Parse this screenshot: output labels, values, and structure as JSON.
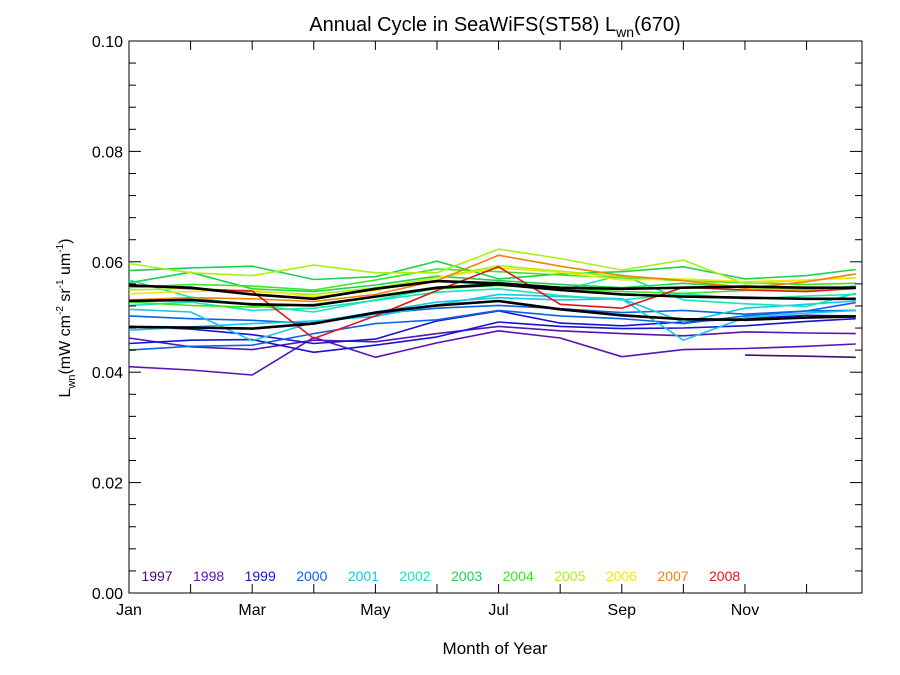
{
  "chart_data": {
    "type": "line",
    "title": {
      "main": "Annual Cycle in SeaWiFS(ST58) L",
      "sub": "wn",
      "tail": "(670)"
    },
    "xlabel": "Month of Year",
    "ylabel": {
      "pre": "L",
      "sub": "wn",
      "units": "(mW cm",
      "sup1": "-2",
      "mid1": " sr",
      "sup2": "-1",
      "mid2": " um",
      "sup3": "-1",
      "close": ")"
    },
    "xlim": [
      1,
      12.9
    ],
    "ylim": [
      0.0,
      0.1
    ],
    "xticks": [
      {
        "value": 1,
        "label": "Jan"
      },
      {
        "value": 3,
        "label": "Mar"
      },
      {
        "value": 5,
        "label": "May"
      },
      {
        "value": 7,
        "label": "Jul"
      },
      {
        "value": 9,
        "label": "Sep"
      },
      {
        "value": 11,
        "label": "Nov"
      }
    ],
    "yticks": [
      {
        "value": 0.0,
        "label": "0.00"
      },
      {
        "value": 0.02,
        "label": "0.02"
      },
      {
        "value": 0.04,
        "label": "0.04"
      },
      {
        "value": 0.06,
        "label": "0.06"
      },
      {
        "value": 0.08,
        "label": "0.08"
      },
      {
        "value": 0.1,
        "label": "0.10"
      }
    ],
    "legend_placement": "bottom-left",
    "series": [
      {
        "name": "1997",
        "color": "#4a0a6e",
        "lines": [
          {
            "x": [
              11.0,
              12.0,
              12.8
            ],
            "y": [
              0.0431,
              0.0429,
              0.0427
            ]
          }
        ]
      },
      {
        "name": "1998",
        "color": "#5a14b4",
        "lines": [
          {
            "x": [
              1,
              2,
              3,
              4,
              5,
              6,
              7,
              8,
              9,
              10,
              11,
              12,
              12.8
            ],
            "y": [
              0.041,
              0.0404,
              0.0395,
              0.0463,
              0.0427,
              0.0453,
              0.0475,
              0.0462,
              0.0428,
              0.0441,
              0.0443,
              0.0447,
              0.0451
            ]
          },
          {
            "x": [
              1,
              2,
              3,
              4,
              5,
              6,
              7,
              8,
              9,
              10,
              11,
              12,
              12.8
            ],
            "y": [
              0.0462,
              0.0446,
              0.0441,
              0.0458,
              0.0455,
              0.047,
              0.0483,
              0.0475,
              0.047,
              0.0466,
              0.0473,
              0.0471,
              0.047
            ]
          }
        ]
      },
      {
        "name": "1999",
        "color": "#1414d2",
        "lines": [
          {
            "x": [
              1,
              2,
              3,
              4,
              5,
              6,
              7,
              8,
              9,
              10,
              11,
              12,
              12.8
            ],
            "y": [
              0.0452,
              0.0458,
              0.0459,
              0.0436,
              0.0449,
              0.0464,
              0.0491,
              0.0483,
              0.0479,
              0.048,
              0.0484,
              0.0492,
              0.0497
            ]
          },
          {
            "x": [
              1,
              2,
              3,
              4,
              5,
              6,
              7,
              8,
              9,
              10,
              11,
              12,
              12.8
            ],
            "y": [
              0.0483,
              0.0478,
              0.0468,
              0.0452,
              0.046,
              0.0493,
              0.0511,
              0.0489,
              0.0484,
              0.0491,
              0.0497,
              0.0503,
              0.0502
            ]
          }
        ]
      },
      {
        "name": "2000",
        "color": "#0a64e6",
        "lines": [
          {
            "x": [
              1,
              2,
              3,
              4,
              5,
              6,
              7,
              8,
              9,
              10,
              11,
              12,
              12.8
            ],
            "y": [
              0.044,
              0.0447,
              0.0449,
              0.047,
              0.0488,
              0.0495,
              0.0512,
              0.0502,
              0.0497,
              0.0488,
              0.0502,
              0.0511,
              0.0512
            ]
          },
          {
            "x": [
              1,
              2,
              3,
              4,
              5,
              6,
              7,
              8,
              9,
              10,
              11,
              12,
              12.8
            ],
            "y": [
              0.0502,
              0.0497,
              0.0494,
              0.0488,
              0.0506,
              0.0516,
              0.0521,
              0.0515,
              0.0508,
              0.0512,
              0.0505,
              0.0511,
              0.0526
            ]
          }
        ]
      },
      {
        "name": "2001",
        "color": "#14c8e6",
        "lines": [
          {
            "x": [
              1,
              2,
              3,
              4,
              5,
              6,
              7,
              8,
              9,
              10,
              11,
              12,
              12.8
            ],
            "y": [
              0.0514,
              0.0509,
              0.0457,
              0.0491,
              0.0509,
              0.0527,
              0.0535,
              0.0531,
              0.0533,
              0.0458,
              0.0499,
              0.0507,
              0.0512
            ]
          },
          {
            "x": [
              1,
              2,
              3,
              4,
              5,
              6,
              7,
              8,
              9,
              10,
              11,
              12,
              12.8
            ],
            "y": [
              0.0476,
              0.0482,
              0.0488,
              0.0493,
              0.0501,
              0.0522,
              0.0541,
              0.0537,
              0.0533,
              0.0491,
              0.0516,
              0.0523,
              0.0529
            ]
          }
        ]
      },
      {
        "name": "2002",
        "color": "#14e6b4",
        "lines": [
          {
            "x": [
              1,
              2,
              3,
              4,
              5,
              6,
              7,
              8,
              9,
              10,
              11,
              12,
              12.8
            ],
            "y": [
              0.0567,
              0.0536,
              0.0521,
              0.0509,
              0.0531,
              0.0552,
              0.0563,
              0.0548,
              0.0576,
              0.0531,
              0.0524,
              0.0519,
              0.0543
            ]
          },
          {
            "x": [
              1,
              2,
              3,
              4,
              5,
              6,
              7,
              8,
              9,
              10,
              11,
              12,
              12.8
            ],
            "y": [
              0.0521,
              0.0527,
              0.0512,
              0.0516,
              0.053,
              0.0545,
              0.0551,
              0.0539,
              0.0531,
              0.0542,
              0.0533,
              0.0538,
              0.0541
            ]
          }
        ]
      },
      {
        "name": "2003",
        "color": "#1ed250",
        "lines": [
          {
            "x": [
              1,
              2,
              3,
              4,
              5,
              6,
              7,
              8,
              9,
              10,
              11,
              12,
              12.8
            ],
            "y": [
              0.0584,
              0.0589,
              0.0592,
              0.0568,
              0.0573,
              0.0601,
              0.0569,
              0.0578,
              0.0582,
              0.0591,
              0.0569,
              0.0575,
              0.0586
            ]
          },
          {
            "x": [
              1,
              2,
              3,
              4,
              5,
              6,
              7,
              8,
              9,
              10,
              11,
              12,
              12.8
            ],
            "y": [
              0.0562,
              0.0581,
              0.0551,
              0.0546,
              0.0558,
              0.0574,
              0.0566,
              0.0559,
              0.0553,
              0.0561,
              0.0553,
              0.0549,
              0.0556
            ]
          }
        ]
      },
      {
        "name": "2004",
        "color": "#3ce61e",
        "lines": [
          {
            "x": [
              1,
              2,
              3,
              4,
              5,
              6,
              7,
              8,
              9,
              10,
              11,
              12,
              12.8
            ],
            "y": [
              0.0553,
              0.0559,
              0.0556,
              0.0549,
              0.0567,
              0.0587,
              0.0582,
              0.0576,
              0.0571,
              0.0566,
              0.0562,
              0.0559,
              0.0561
            ]
          },
          {
            "x": [
              1,
              2,
              3,
              4,
              5,
              6,
              7,
              8,
              9,
              10,
              11,
              12,
              12.8
            ],
            "y": [
              0.0527,
              0.0521,
              0.0518,
              0.0523,
              0.0537,
              0.0551,
              0.0557,
              0.0551,
              0.0546,
              0.0543,
              0.0548,
              0.0551,
              0.0553
            ]
          }
        ]
      },
      {
        "name": "2005",
        "color": "#aaf014",
        "lines": [
          {
            "x": [
              1,
              2,
              3,
              4,
              5,
              6,
              7,
              8,
              9,
              10,
              11,
              12,
              12.8
            ],
            "y": [
              0.0597,
              0.058,
              0.0575,
              0.0594,
              0.058,
              0.058,
              0.0623,
              0.0606,
              0.0585,
              0.0603,
              0.056,
              0.0567,
              0.0571
            ]
          },
          {
            "x": [
              1,
              2,
              3,
              4,
              5,
              6,
              7,
              8,
              9,
              10,
              11,
              12,
              12.8
            ],
            "y": [
              0.0549,
              0.0552,
              0.0546,
              0.0541,
              0.0553,
              0.0571,
              0.0593,
              0.0583,
              0.0573,
              0.0568,
              0.0553,
              0.0547,
              0.0551
            ]
          }
        ]
      },
      {
        "name": "2006",
        "color": "#f0e614",
        "lines": [
          {
            "x": [
              1,
              2,
              3,
              4,
              5,
              6,
              7,
              8,
              9,
              10,
              11,
              12,
              12.8
            ],
            "y": [
              0.0542,
              0.0546,
              0.0549,
              0.0537,
              0.0548,
              0.0571,
              0.0589,
              0.0581,
              0.0567,
              0.0569,
              0.0564,
              0.0567,
              0.0571
            ]
          }
        ]
      },
      {
        "name": "2007",
        "color": "#f0820a",
        "lines": [
          {
            "x": [
              1,
              2,
              3,
              4,
              5,
              6,
              7,
              8,
              9,
              10,
              11,
              12,
              12.8
            ],
            "y": [
              0.0531,
              0.0535,
              0.0533,
              0.0528,
              0.0541,
              0.0566,
              0.0612,
              0.0592,
              0.0575,
              0.0566,
              0.0552,
              0.0564,
              0.0578
            ]
          }
        ]
      },
      {
        "name": "2008",
        "color": "#e61414",
        "lines": [
          {
            "x": [
              1,
              2,
              3,
              4,
              5,
              6,
              7,
              8,
              9,
              10,
              11,
              12,
              12.8
            ],
            "y": [
              0.0559,
              0.0551,
              0.0547,
              0.0461,
              0.0502,
              0.0548,
              0.0591,
              0.0523,
              0.0516,
              0.0554,
              0.0549,
              0.0546,
              0.0552
            ]
          }
        ]
      }
    ],
    "mean_lines": [
      {
        "color": "#000000",
        "x": [
          1,
          2,
          3,
          4,
          5,
          6,
          7,
          8,
          9,
          10,
          11,
          12,
          12.8
        ],
        "y": [
          0.0482,
          0.0481,
          0.0479,
          0.0488,
          0.0508,
          0.0521,
          0.0529,
          0.0514,
          0.0503,
          0.0496,
          0.0495,
          0.0499,
          0.0501
        ]
      },
      {
        "color": "#000000",
        "x": [
          1,
          2,
          3,
          4,
          5,
          6,
          7,
          8,
          9,
          10,
          11,
          12,
          12.8
        ],
        "y": [
          0.0529,
          0.0531,
          0.0523,
          0.0521,
          0.0537,
          0.0553,
          0.0559,
          0.0549,
          0.0541,
          0.0537,
          0.0535,
          0.0533,
          0.0533
        ]
      },
      {
        "color": "#000000",
        "x": [
          1,
          2,
          3,
          4,
          5,
          6,
          7,
          8,
          9,
          10,
          11,
          12,
          12.8
        ],
        "y": [
          0.0557,
          0.0553,
          0.0541,
          0.0533,
          0.0551,
          0.0565,
          0.0561,
          0.0553,
          0.0551,
          0.0553,
          0.0555,
          0.0553,
          0.0553
        ]
      }
    ]
  }
}
